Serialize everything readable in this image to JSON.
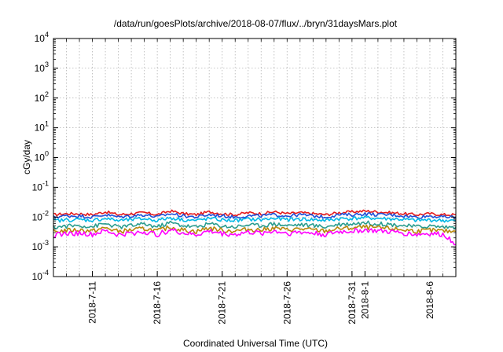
{
  "chart_data": {
    "type": "line",
    "title": "/data/run/goesPlots/archive/2018-08-07/flux/../bryn/31daysMars.plot",
    "xlabel": "Coordinated Universal Time (UTC)",
    "ylabel": "cGy/day",
    "y_scale": "log",
    "ylim": [
      0.0001,
      10000
    ],
    "xlim": [
      "2018-07-08",
      "2018-08-08"
    ],
    "grid": true,
    "legend": "none",
    "y_ticks": [
      {
        "value": 0.0001,
        "base": "10",
        "exp": "-4"
      },
      {
        "value": 0.001,
        "base": "10",
        "exp": "-3"
      },
      {
        "value": 0.01,
        "base": "10",
        "exp": "-2"
      },
      {
        "value": 0.1,
        "base": "10",
        "exp": "-1"
      },
      {
        "value": 1,
        "base": "10",
        "exp": "0"
      },
      {
        "value": 10,
        "base": "10",
        "exp": "1"
      },
      {
        "value": 100,
        "base": "10",
        "exp": "2"
      },
      {
        "value": 1000,
        "base": "10",
        "exp": "3"
      },
      {
        "value": 10000,
        "base": "10",
        "exp": "4"
      }
    ],
    "x_ticks": [
      {
        "date": "2018-07-11",
        "label": "2018-7-11"
      },
      {
        "date": "2018-07-16",
        "label": "2018-7-16"
      },
      {
        "date": "2018-07-21",
        "label": "2018-7-21"
      },
      {
        "date": "2018-07-26",
        "label": "2018-7-26"
      },
      {
        "date": "2018-07-31",
        "label": "2018-7-31"
      },
      {
        "date": "2018-08-01",
        "label": "2018-8-1"
      },
      {
        "date": "2018-08-06",
        "label": "2018-8-6"
      }
    ],
    "series": [
      {
        "color": "#e41a1c",
        "values": [
          0.012,
          0.013,
          0.013,
          0.012,
          0.015,
          0.012,
          0.013,
          0.014,
          0.012,
          0.016,
          0.013,
          0.012,
          0.015,
          0.013,
          0.012,
          0.014,
          0.013,
          0.015,
          0.013,
          0.014,
          0.013,
          0.012,
          0.014,
          0.015,
          0.016,
          0.015,
          0.014,
          0.013,
          0.012,
          0.013,
          0.012,
          0.012
        ]
      },
      {
        "color": "#1f4fd8",
        "values": [
          0.01,
          0.011,
          0.011,
          0.01,
          0.012,
          0.01,
          0.011,
          0.012,
          0.01,
          0.013,
          0.011,
          0.01,
          0.012,
          0.011,
          0.01,
          0.011,
          0.011,
          0.012,
          0.011,
          0.012,
          0.011,
          0.01,
          0.012,
          0.012,
          0.013,
          0.012,
          0.012,
          0.011,
          0.01,
          0.011,
          0.01,
          0.01
        ]
      },
      {
        "color": "#00b8e6",
        "values": [
          0.0075,
          0.008,
          0.0082,
          0.0078,
          0.009,
          0.0076,
          0.0082,
          0.0088,
          0.0077,
          0.0095,
          0.0082,
          0.0076,
          0.009,
          0.008,
          0.0077,
          0.0085,
          0.0082,
          0.009,
          0.0082,
          0.0086,
          0.0082,
          0.0077,
          0.0088,
          0.009,
          0.0095,
          0.009,
          0.0087,
          0.0082,
          0.0077,
          0.008,
          0.0077,
          0.0076
        ]
      },
      {
        "color": "#2a9d8f",
        "values": [
          0.0045,
          0.005,
          0.0052,
          0.0048,
          0.006,
          0.0046,
          0.0052,
          0.0058,
          0.0047,
          0.0065,
          0.0052,
          0.0046,
          0.006,
          0.005,
          0.0047,
          0.0055,
          0.0052,
          0.006,
          0.0052,
          0.0056,
          0.0052,
          0.0047,
          0.0058,
          0.006,
          0.0065,
          0.006,
          0.0057,
          0.0052,
          0.0047,
          0.005,
          0.0047,
          0.0046
        ]
      },
      {
        "color": "#b8860b",
        "values": [
          0.0032,
          0.0036,
          0.0037,
          0.0034,
          0.0043,
          0.0033,
          0.0037,
          0.0041,
          0.0034,
          0.0046,
          0.0037,
          0.0033,
          0.0043,
          0.0036,
          0.0034,
          0.0039,
          0.0037,
          0.0043,
          0.0037,
          0.004,
          0.0037,
          0.0034,
          0.0041,
          0.0043,
          0.0046,
          0.0043,
          0.0041,
          0.0037,
          0.0034,
          0.0036,
          0.0034,
          0.0033
        ]
      },
      {
        "color": "#ff00ff",
        "values": [
          0.0025,
          0.0028,
          0.0029,
          0.0026,
          0.0034,
          0.0025,
          0.0029,
          0.0032,
          0.0026,
          0.0037,
          0.0029,
          0.0025,
          0.0034,
          0.0028,
          0.0026,
          0.0031,
          0.0029,
          0.0034,
          0.0029,
          0.0031,
          0.0029,
          0.0026,
          0.0032,
          0.0034,
          0.0037,
          0.0034,
          0.0032,
          0.0029,
          0.0026,
          0.0028,
          0.0026,
          0.0012
        ]
      }
    ]
  }
}
